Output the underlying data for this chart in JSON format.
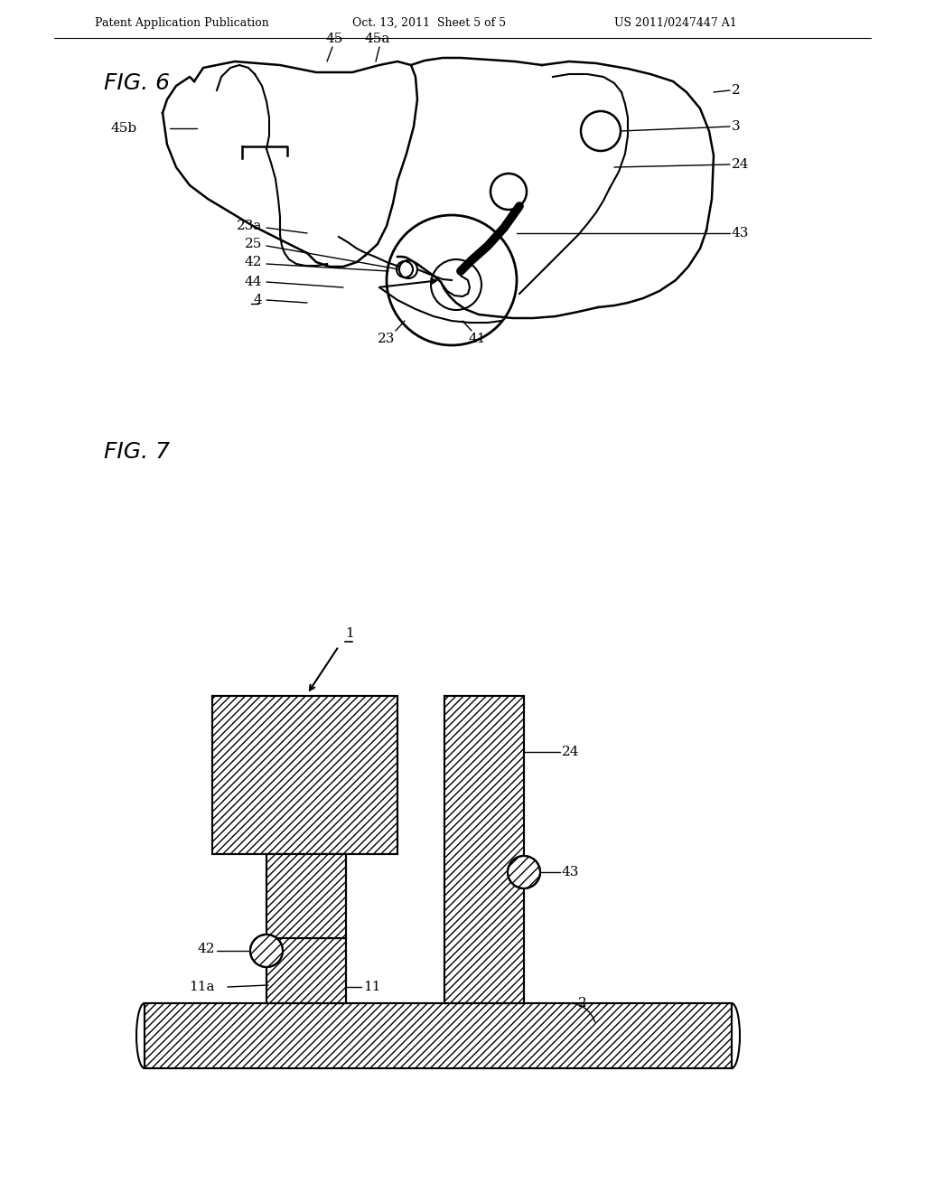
{
  "bg_color": "#ffffff",
  "header_left": "Patent Application Publication",
  "header_mid": "Oct. 13, 2011  Sheet 5 of 5",
  "header_right": "US 2011/0247447 A1",
  "fig6_label": "FIG. 6",
  "fig7_label": "FIG. 7",
  "line_color": "#000000",
  "hatch_pattern": "////"
}
